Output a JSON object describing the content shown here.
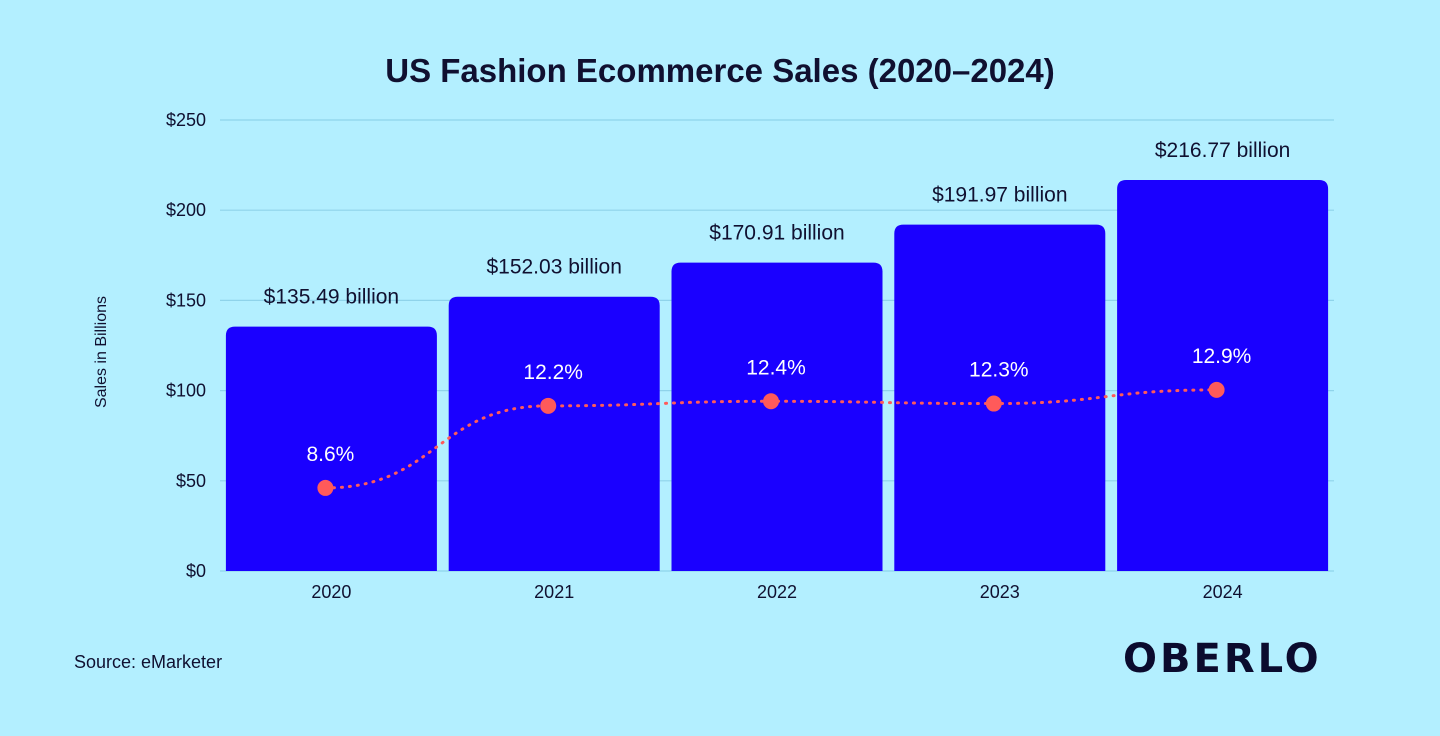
{
  "chart_data": {
    "type": "bar",
    "title": "US Fashion Ecommerce Sales (2020–2024)",
    "ylabel": "Sales in Billions",
    "xlabel": "",
    "ylim": [
      0,
      250
    ],
    "yticks": [
      {
        "value": 0,
        "label": "$0"
      },
      {
        "value": 50,
        "label": "$50"
      },
      {
        "value": 100,
        "label": "$100"
      },
      {
        "value": 150,
        "label": "$150"
      },
      {
        "value": 200,
        "label": "$200"
      },
      {
        "value": 250,
        "label": "$250"
      }
    ],
    "categories": [
      "2020",
      "2021",
      "2022",
      "2023",
      "2024"
    ],
    "values": [
      135.49,
      152.03,
      170.91,
      191.97,
      216.77
    ],
    "value_labels": [
      "$135.49 billion",
      "$152.03 billion",
      "$170.91 billion",
      "$191.97 billion",
      "$216.77 billion"
    ],
    "growth": {
      "values": [
        8.6,
        12.2,
        12.4,
        12.3,
        12.9
      ],
      "labels": [
        "8.6%",
        "12.2%",
        "12.4%",
        "12.3%",
        "12.9%"
      ],
      "line_style": "dotted"
    },
    "grid": true,
    "colors": {
      "bar": "#1a00ff",
      "line": "#ff5a5a",
      "grid": "#8fd3ea",
      "background": "#b3efff"
    }
  },
  "source": "Source: eMarketer",
  "brand": "OBERLO"
}
